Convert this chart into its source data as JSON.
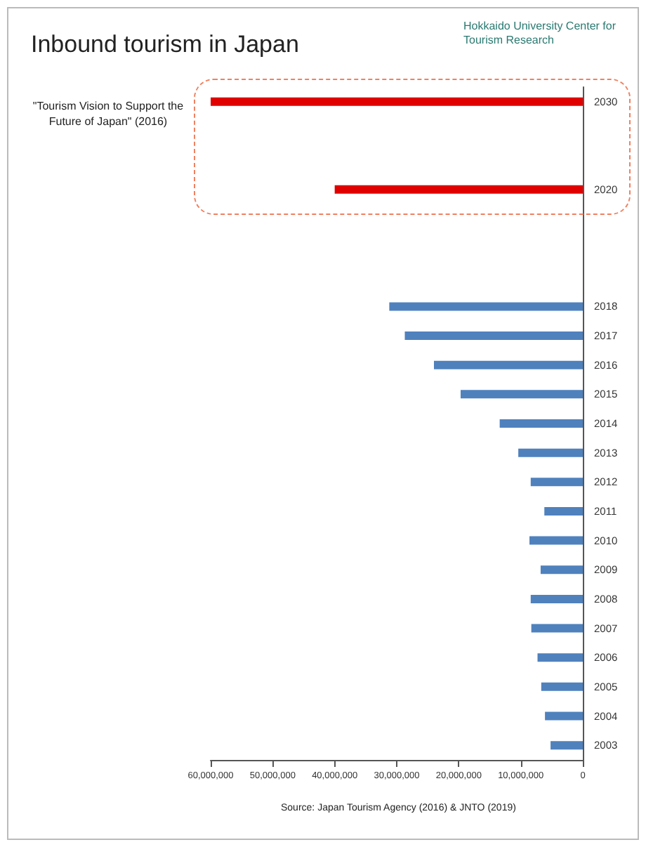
{
  "chart_data": {
    "type": "bar",
    "orientation": "horizontal",
    "title": "Inbound tourism in Japan",
    "annotations": [
      "Hokkaido University Center for Tourism Research",
      "\"Tourism Vision to Support the Future of Japan\" (2016)",
      "Source: Japan Tourism Agency (2016) & JNTO (2019)"
    ],
    "categories": [
      "2030",
      null,
      null,
      "2020",
      null,
      null,
      null,
      "2018",
      "2017",
      "2016",
      "2015",
      "2014",
      "2013",
      "2012",
      "2011",
      "2010",
      "2009",
      "2008",
      "2007",
      "2006",
      "2005",
      "2004",
      "2003"
    ],
    "values": [
      60000000,
      null,
      null,
      40000000,
      null,
      null,
      null,
      31200000,
      28700000,
      24000000,
      19700000,
      13400000,
      10400000,
      8400000,
      6200000,
      8600000,
      6800000,
      8400000,
      8300000,
      7300000,
      6700000,
      6100000,
      5200000
    ],
    "colors": [
      "#e00000",
      null,
      null,
      "#e00000",
      null,
      null,
      null,
      "#4f81bd",
      "#4f81bd",
      "#4f81bd",
      "#4f81bd",
      "#4f81bd",
      "#4f81bd",
      "#4f81bd",
      "#4f81bd",
      "#4f81bd",
      "#4f81bd",
      "#4f81bd",
      "#4f81bd",
      "#4f81bd",
      "#4f81bd",
      "#4f81bd",
      "#4f81bd"
    ],
    "xlim": [
      60000000,
      0
    ],
    "xticks": [
      {
        "value": 60000000,
        "label": "60,000,000"
      },
      {
        "value": 50000000,
        "label": "50,000,000"
      },
      {
        "value": 40000000,
        "label": "40,000,000"
      },
      {
        "value": 30000000,
        "label": "30,000,000"
      },
      {
        "value": 20000000,
        "label": "20,000,000"
      },
      {
        "value": 10000000,
        "label": "10,000,000"
      },
      0
    ],
    "grid": false
  }
}
